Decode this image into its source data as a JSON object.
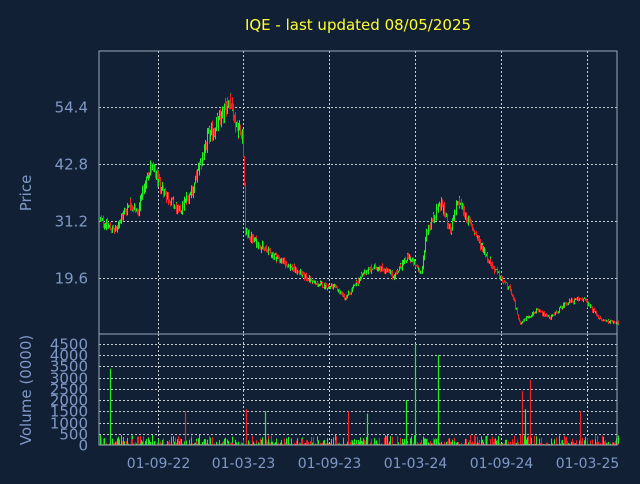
{
  "title": "IQE - last updated 08/05/2025",
  "colors": {
    "background": "#112034",
    "title": "#ffff33",
    "axis_text": "#7f98c6",
    "frame": "#9aa7bd",
    "grid": "#c8cdd6",
    "up": "#22ee22",
    "down": "#ee2222"
  },
  "chart_data": [
    {
      "type": "candlestick",
      "title": "IQE - last updated 08/05/2025",
      "ylabel": "Price",
      "y_ticks": [
        19.6,
        31.2,
        42.8,
        54.4
      ],
      "ylim": [
        12,
        67
      ],
      "x_ticks": [
        "01-09-22",
        "01-03-23",
        "01-09-23",
        "01-03-24",
        "01-09-24",
        "01-03-25"
      ],
      "x_range": [
        "2022-05-01",
        "2025-05-08"
      ],
      "grid": true,
      "price_path": [
        {
          "date": "2022-05-01",
          "close": 31.5
        },
        {
          "date": "2022-06-01",
          "close": 29.0
        },
        {
          "date": "2022-07-01",
          "close": 35.0
        },
        {
          "date": "2022-07-20",
          "close": 33.0
        },
        {
          "date": "2022-08-15",
          "close": 42.5
        },
        {
          "date": "2022-09-15",
          "close": 37.0
        },
        {
          "date": "2022-10-15",
          "close": 33.0
        },
        {
          "date": "2022-11-15",
          "close": 38.0
        },
        {
          "date": "2022-12-15",
          "close": 48.0
        },
        {
          "date": "2023-01-15",
          "close": 52.5
        },
        {
          "date": "2023-01-31",
          "close": 56.5
        },
        {
          "date": "2023-02-15",
          "close": 50.5
        },
        {
          "date": "2023-03-01",
          "close": 49.0
        },
        {
          "date": "2023-03-05",
          "close": 29.0
        },
        {
          "date": "2023-04-01",
          "close": 26.5
        },
        {
          "date": "2023-05-15",
          "close": 23.5
        },
        {
          "date": "2023-07-01",
          "close": 20.5
        },
        {
          "date": "2023-08-01",
          "close": 18.5
        },
        {
          "date": "2023-09-15",
          "close": 17.5
        },
        {
          "date": "2023-10-05",
          "close": 15.5
        },
        {
          "date": "2023-11-15",
          "close": 21.0
        },
        {
          "date": "2023-12-15",
          "close": 22.0
        },
        {
          "date": "2024-01-15",
          "close": 20.0
        },
        {
          "date": "2024-02-15",
          "close": 24.0
        },
        {
          "date": "2024-03-15",
          "close": 20.5
        },
        {
          "date": "2024-03-25",
          "close": 29.0
        },
        {
          "date": "2024-04-25",
          "close": 35.0
        },
        {
          "date": "2024-05-15",
          "close": 29.0
        },
        {
          "date": "2024-06-01",
          "close": 35.5
        },
        {
          "date": "2024-07-01",
          "close": 29.5
        },
        {
          "date": "2024-08-15",
          "close": 21.5
        },
        {
          "date": "2024-09-20",
          "close": 17.0
        },
        {
          "date": "2024-10-10",
          "close": 10.5
        },
        {
          "date": "2024-11-15",
          "close": 13.0
        },
        {
          "date": "2024-12-15",
          "close": 11.5
        },
        {
          "date": "2025-01-15",
          "close": 14.5
        },
        {
          "date": "2025-02-20",
          "close": 15.5
        },
        {
          "date": "2025-04-01",
          "close": 11.0
        },
        {
          "date": "2025-05-08",
          "close": 10.5
        }
      ]
    },
    {
      "type": "bar",
      "ylabel": "Volume (0000)",
      "y_ticks": [
        0,
        500,
        1000,
        1500,
        2000,
        2500,
        3000,
        3500,
        4000,
        4500
      ],
      "ylim": [
        0,
        4500
      ],
      "x_ticks": [
        "01-09-22",
        "01-03-23",
        "01-09-23",
        "01-03-24",
        "01-09-24",
        "01-03-25"
      ],
      "grid": true,
      "spikes": [
        {
          "date": "2022-05-22",
          "value": 3400,
          "dir": "up"
        },
        {
          "date": "2022-10-28",
          "value": 1500,
          "dir": "down"
        },
        {
          "date": "2023-03-08",
          "value": 1600,
          "dir": "down"
        },
        {
          "date": "2023-04-18",
          "value": 1500,
          "dir": "up"
        },
        {
          "date": "2023-10-10",
          "value": 1500,
          "dir": "down"
        },
        {
          "date": "2023-11-20",
          "value": 1400,
          "dir": "up"
        },
        {
          "date": "2024-02-10",
          "value": 2000,
          "dir": "up"
        },
        {
          "date": "2024-03-01",
          "value": 4500,
          "dir": "up"
        },
        {
          "date": "2024-04-18",
          "value": 4000,
          "dir": "up"
        },
        {
          "date": "2024-10-14",
          "value": 2400,
          "dir": "down"
        },
        {
          "date": "2024-11-01",
          "value": 2900,
          "dir": "down"
        },
        {
          "date": "2024-10-22",
          "value": 1600,
          "dir": "up"
        },
        {
          "date": "2025-02-15",
          "value": 1500,
          "dir": "down"
        }
      ],
      "baseline_range": [
        30,
        450
      ]
    }
  ]
}
